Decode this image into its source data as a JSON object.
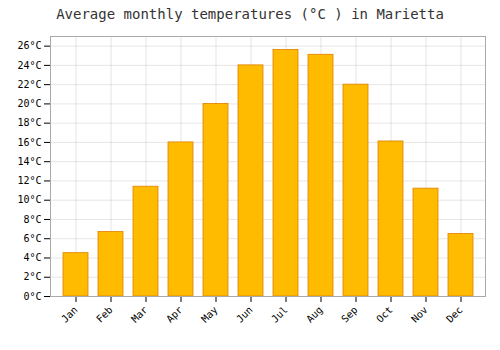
{
  "chart_data": {
    "type": "bar",
    "title": "Average monthly temperatures (°C ) in Marietta",
    "categories": [
      "Jan",
      "Feb",
      "Mar",
      "Apr",
      "May",
      "Jun",
      "Jul",
      "Aug",
      "Sep",
      "Oct",
      "Nov",
      "Dec"
    ],
    "values": [
      4.5,
      6.7,
      11.4,
      16.0,
      20.0,
      24.0,
      25.6,
      25.1,
      22.0,
      16.1,
      11.2,
      6.5
    ],
    "color": "#FFBB00",
    "ylim": [
      0,
      27
    ],
    "yticks": [
      {
        "value": 0,
        "label": "0°C"
      },
      {
        "value": 2,
        "label": "2°C"
      },
      {
        "value": 4,
        "label": "4°C"
      },
      {
        "value": 6,
        "label": "6°C"
      },
      {
        "value": 8,
        "label": "8°C"
      },
      {
        "value": 10,
        "label": "10°C"
      },
      {
        "value": 12,
        "label": "12°C"
      },
      {
        "value": 14,
        "label": "14°C"
      },
      {
        "value": 16,
        "label": "16°C"
      },
      {
        "value": 18,
        "label": "18°C"
      },
      {
        "value": 20,
        "label": "20°C"
      },
      {
        "value": 22,
        "label": "22°C"
      },
      {
        "value": 24,
        "label": "24°C"
      },
      {
        "value": 26,
        "label": "26°C"
      }
    ],
    "grid": true
  }
}
